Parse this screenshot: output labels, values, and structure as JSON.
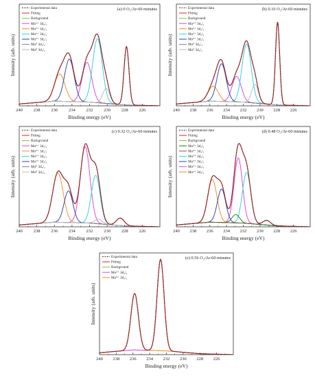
{
  "chart_data": [
    {
      "type": "line",
      "title": "(a) 0 O₂/Ar-60 minutes",
      "xlabel": "Binding energy (eV)",
      "ylabel": "Intensity (arb. units)",
      "xlim": [
        240,
        224
      ],
      "ylim": [
        0,
        1.08
      ],
      "xticks": [
        "240",
        "238",
        "236",
        "234",
        "232",
        "230",
        "228",
        "226"
      ],
      "legend": [
        {
          "label": "Experimental data",
          "color": "#333333",
          "dash": true
        },
        {
          "label": "Fitting",
          "color": "#e02020"
        },
        {
          "label": "Background",
          "color": "#7cc242"
        },
        {
          "label": "Mo⁶⁺ 3d₅/₂",
          "color": "#e040e0"
        },
        {
          "label": "Mo⁶⁺ 3d₃/₂",
          "color": "#f08a24"
        },
        {
          "label": "Mo⁵⁺ 3d₅/₂",
          "color": "#22d3e6"
        },
        {
          "label": "Mo⁵⁺ 3d₃/₂",
          "color": "#2b3fb0"
        },
        {
          "label": "Mo⁰ 3d₅/₂",
          "color": "#808080"
        },
        {
          "label": "Mo⁰ 3d₃/₂",
          "color": "#b8b8b8"
        }
      ],
      "background": [
        [
          240,
          0.02
        ],
        [
          236,
          0.05
        ],
        [
          232,
          0.04
        ],
        [
          228,
          0.01
        ],
        [
          224,
          0.0
        ]
      ],
      "peaks": [
        {
          "series": "Mo⁶⁺ 3d₅/₂",
          "center": 232.3,
          "amp": 0.42,
          "width": 0.55
        },
        {
          "series": "Mo⁶⁺ 3d₃/₂",
          "center": 235.4,
          "amp": 0.29,
          "width": 0.6
        },
        {
          "series": "Mo⁵⁺ 3d₅/₂",
          "center": 231.1,
          "amp": 0.68,
          "width": 0.55
        },
        {
          "series": "Mo⁵⁺ 3d₃/₂",
          "center": 234.3,
          "amp": 0.45,
          "width": 0.55
        },
        {
          "series": "Mo⁰ 3d₅/₂",
          "center": 227.8,
          "amp": 0.62,
          "width": 0.28
        },
        {
          "series": "Mo⁰ 3d₃/₂",
          "center": 230.1,
          "amp": 0.16,
          "width": 0.4
        }
      ]
    },
    {
      "type": "line",
      "title": "(b) 0.16 O₂/Ar-60 minutes",
      "xlabel": "Binding energy (eV)",
      "ylabel": "Intensity (arb. units)",
      "xlim": [
        240,
        224
      ],
      "ylim": [
        0,
        1.08
      ],
      "xticks": [
        "240",
        "238",
        "236",
        "234",
        "232",
        "230",
        "228",
        "226"
      ],
      "legend": [
        {
          "label": "Experimental data",
          "color": "#333333",
          "dash": true
        },
        {
          "label": "Fitting",
          "color": "#e02020"
        },
        {
          "label": "Background",
          "color": "#7cc242"
        },
        {
          "label": "Mo⁶⁺ 3d₅/₂",
          "color": "#e040e0"
        },
        {
          "label": "Mo⁶⁺ 3d₃/₂",
          "color": "#f08a24"
        },
        {
          "label": "Mo⁵⁺ 3d₅/₂",
          "color": "#22d3e6"
        },
        {
          "label": "Mo⁵⁺ 3d₃/₂",
          "color": "#2b3fb0"
        },
        {
          "label": "Mo⁰ 3d₅/₂",
          "color": "#808080"
        },
        {
          "label": "Mo⁰ 3d₃/₂",
          "color": "#b8b8b8"
        }
      ],
      "background": [
        [
          240,
          0.02
        ],
        [
          236,
          0.05
        ],
        [
          232,
          0.04
        ],
        [
          228,
          0.01
        ],
        [
          224,
          0.0
        ]
      ],
      "peaks": [
        {
          "series": "Mo⁶⁺ 3d₅/₂",
          "center": 232.8,
          "amp": 0.27,
          "width": 0.55
        },
        {
          "series": "Mo⁶⁺ 3d₃/₂",
          "center": 235.6,
          "amp": 0.16,
          "width": 0.6
        },
        {
          "series": "Mo⁵⁺ 3d₅/₂",
          "center": 231.6,
          "amp": 0.62,
          "width": 0.55
        },
        {
          "series": "Mo⁵⁺ 3d₃/₂",
          "center": 234.6,
          "amp": 0.4,
          "width": 0.55
        },
        {
          "series": "Mo⁰ 3d₅/₂",
          "center": 227.9,
          "amp": 0.88,
          "width": 0.25
        },
        {
          "series": "Mo⁰ 3d₃/₂",
          "center": 230.6,
          "amp": 0.2,
          "width": 0.4
        }
      ]
    },
    {
      "type": "line",
      "title": "(c) 0.32 O₂/Ar-60 minutes",
      "xlabel": "Binding energy (eV)",
      "ylabel": "Intensity (arb. units)",
      "xlim": [
        240,
        224
      ],
      "ylim": [
        0,
        1.08
      ],
      "xticks": [
        "240",
        "238",
        "236",
        "234",
        "232",
        "230",
        "228",
        "226"
      ],
      "legend": [
        {
          "label": "Experimental data",
          "color": "#333333",
          "dash": true
        },
        {
          "label": "Fitting",
          "color": "#e02020"
        },
        {
          "label": "Background",
          "color": "#7cc242"
        },
        {
          "label": "Mo⁶⁺ 3d₅/₂",
          "color": "#e040e0"
        },
        {
          "label": "Mo⁶⁺ 3d₃/₂",
          "color": "#f08a24"
        },
        {
          "label": "Mo⁵⁺ 3d₅/₂",
          "color": "#22d3e6"
        },
        {
          "label": "Mo⁵⁺ 3d₃/₂",
          "color": "#2b3fb0"
        },
        {
          "label": "Mo⁰ 3d₅/₂",
          "color": "#808080"
        },
        {
          "label": "Mo⁰ 3d₃/₂",
          "color": "#b8b8b8"
        }
      ],
      "background": [
        [
          240,
          0.02
        ],
        [
          236,
          0.05
        ],
        [
          232,
          0.04
        ],
        [
          228,
          0.01
        ],
        [
          224,
          0.0
        ]
      ],
      "peaks": [
        {
          "series": "Mo⁶⁺ 3d₅/₂",
          "center": 232.5,
          "amp": 0.82,
          "width": 0.55
        },
        {
          "series": "Mo⁶⁺ 3d₃/₂",
          "center": 235.6,
          "amp": 0.53,
          "width": 0.6
        },
        {
          "series": "Mo⁵⁺ 3d₅/₂",
          "center": 231.3,
          "amp": 0.52,
          "width": 0.5
        },
        {
          "series": "Mo⁵⁺ 3d₃/₂",
          "center": 234.4,
          "amp": 0.34,
          "width": 0.5
        },
        {
          "series": "Mo⁰ 3d₅/₂",
          "center": 228.5,
          "amp": 0.08,
          "width": 0.45
        },
        {
          "series": "Mo⁰ 3d₃/₂",
          "center": 231.0,
          "amp": 0.05,
          "width": 0.45
        }
      ]
    },
    {
      "type": "line",
      "title": "(d) 0.48 O₂/Ar-60 minutes",
      "xlabel": "Binding energy (eV)",
      "ylabel": "Intensity (arb. units)",
      "xlim": [
        240,
        224
      ],
      "ylim": [
        0,
        1.08
      ],
      "xticks": [
        "240",
        "238",
        "236",
        "234",
        "232",
        "230",
        "228",
        "226"
      ],
      "legend": [
        {
          "label": "Experimental data",
          "color": "#333333",
          "dash": true
        },
        {
          "label": "Fitting",
          "color": "#e02020"
        },
        {
          "label": "Background",
          "color": "#7cc242"
        },
        {
          "label": "Mo⁴⁺ 3d₅/₂",
          "color": "#1f7a1f"
        },
        {
          "label": "Mo⁴⁺ 3d₃/₂",
          "color": "#7a5a2a"
        },
        {
          "label": "Mo⁵⁺ 3d₅/₂",
          "color": "#22d3e6"
        },
        {
          "label": "Mo⁵⁺ 3d₃/₂",
          "color": "#2b3fb0"
        },
        {
          "label": "Mo⁶⁺ 3d₅/₂",
          "color": "#e040e0"
        },
        {
          "label": "Mo⁶⁺ 3d₃/₂",
          "color": "#f08a24"
        }
      ],
      "background": [
        [
          240,
          0.02
        ],
        [
          236,
          0.05
        ],
        [
          232,
          0.04
        ],
        [
          228,
          0.01
        ],
        [
          224,
          0.0
        ]
      ],
      "peaks": [
        {
          "series": "Mo⁶⁺ 3d₅/₂",
          "center": 232.6,
          "amp": 0.7,
          "width": 0.5
        },
        {
          "series": "Mo⁶⁺ 3d₃/₂",
          "center": 235.7,
          "amp": 0.46,
          "width": 0.55
        },
        {
          "series": "Mo⁵⁺ 3d₅/₂",
          "center": 231.6,
          "amp": 0.55,
          "width": 0.5
        },
        {
          "series": "Mo⁵⁺ 3d₃/₂",
          "center": 234.6,
          "amp": 0.36,
          "width": 0.5
        },
        {
          "series": "Mo⁴⁺ 3d₅/₂",
          "center": 232.9,
          "amp": 0.09,
          "width": 0.45
        },
        {
          "series": "Mo⁴⁺ 3d₃/₂",
          "center": 229.2,
          "amp": 0.05,
          "width": 0.45
        }
      ]
    },
    {
      "type": "line",
      "title": "(e) 0.56 O₂/Ar-60 minutes",
      "xlabel": "Binding energy (eV)",
      "ylabel": "Intensity (arb. units)",
      "xlim": [
        240,
        224
      ],
      "ylim": [
        0,
        1.08
      ],
      "xticks": [
        "240",
        "238",
        "236",
        "234",
        "232",
        "230",
        "228",
        "226"
      ],
      "legend": [
        {
          "label": "Experimental data",
          "color": "#333333",
          "dash": true
        },
        {
          "label": "Fitting",
          "color": "#e02020"
        },
        {
          "label": "Background",
          "color": "#7cc242"
        },
        {
          "label": "Mo⁶⁺ 3d₅/₂",
          "color": "#e040e0"
        },
        {
          "label": "Mo⁶⁺ 3d₃/₂",
          "color": "#f08a24"
        }
      ],
      "background": [
        [
          240,
          0.02
        ],
        [
          236,
          0.05
        ],
        [
          232,
          0.04
        ],
        [
          228,
          0.01
        ],
        [
          224,
          0.0
        ]
      ],
      "peaks": [
        {
          "series": "Mo⁶⁺ 3d₅/₂",
          "center": 232.7,
          "amp": 0.97,
          "width": 0.42
        },
        {
          "series": "Mo⁶⁺ 3d₃/₂",
          "center": 235.8,
          "amp": 0.6,
          "width": 0.45
        }
      ]
    }
  ]
}
